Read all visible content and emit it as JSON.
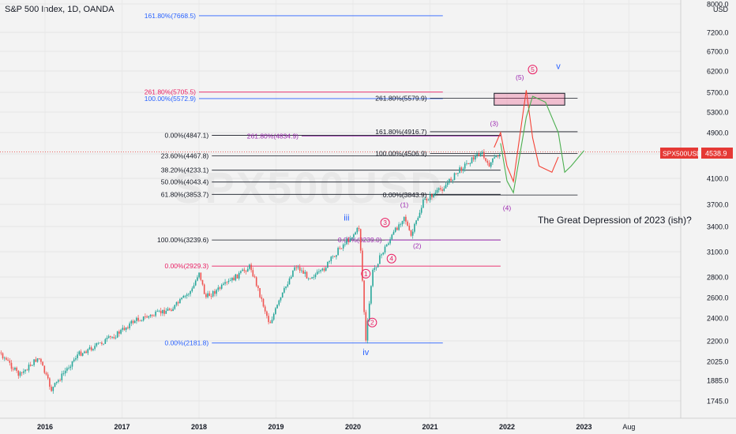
{
  "header": {
    "title": "S&P 500 Index, 1D, OANDA"
  },
  "currency": "USD",
  "watermark": "SPX500USD",
  "price_label": {
    "symbol": "SPX500USD",
    "value": "4538.9"
  },
  "colors": {
    "background": "#f3f3f3",
    "up": "#26a69a",
    "down": "#ef5350",
    "fib_blue": "#2962ff",
    "fib_red": "#e91e63",
    "fib_gray": "#131722",
    "wave_purple": "#9c27b0",
    "current_price": "#e53935"
  },
  "chart_data": {
    "type": "line",
    "title": "",
    "xlabel": "",
    "ylabel": "",
    "ylim": [
      1650,
      8000
    ],
    "y_ticks": [
      "8000.0",
      "7200.0",
      "6700.0",
      "6200.0",
      "5700.0",
      "5300.0",
      "4900.0",
      "4500.0",
      "4100.0",
      "3700.0",
      "3400.0",
      "3100.0",
      "2800.0",
      "2600.0",
      "2400.0",
      "2200.0",
      "2025.0",
      "1885.0",
      "1745.0"
    ],
    "x_ticks": [
      "2016",
      "2017",
      "2018",
      "2019",
      "2020",
      "2021",
      "2022",
      "2023",
      "Aug"
    ],
    "grid": true,
    "series": [
      {
        "x": [
          "2015-01",
          "2015-06",
          "2015-09",
          "2015-12",
          "2016-02",
          "2016-06",
          "2016-09",
          "2016-12",
          "2017-03",
          "2017-06",
          "2017-09",
          "2017-12",
          "2018-01",
          "2018-02",
          "2018-05",
          "2018-09",
          "2018-12",
          "2019-04",
          "2019-06",
          "2019-08",
          "2019-11",
          "2020-01",
          "2020-02",
          "2020-03",
          "2020-04",
          "2020-06",
          "2020-09",
          "2020-10",
          "2020-12",
          "2021-03",
          "2021-06",
          "2021-09",
          "2021-10",
          "2021-12"
        ],
        "y": [
          2050,
          2100,
          1920,
          2060,
          1820,
          2080,
          2160,
          2250,
          2380,
          2430,
          2500,
          2680,
          2870,
          2600,
          2720,
          2930,
          2350,
          2940,
          2800,
          2850,
          3150,
          3300,
          3390,
          2190,
          2850,
          3150,
          3550,
          3270,
          3750,
          3950,
          4280,
          4540,
          4300,
          4538.9
        ]
      }
    ],
    "fib_levels": [
      {
        "label": "161.80%(7668.5)",
        "value": 7668.5,
        "start": "2018-01",
        "end": "2021-03",
        "color": "blue"
      },
      {
        "label": "261.80%(5705.5)",
        "value": 5705.5,
        "start": "2018-01",
        "end": "2021-03",
        "color": "red"
      },
      {
        "label": "100.00%(5572.9)",
        "value": 5572.9,
        "start": "2018-01",
        "end": "2021-03",
        "color": "blue"
      },
      {
        "label": "261.80%(5579.9)",
        "value": 5579.9,
        "start": "2021-01",
        "end": "2022-12",
        "color": "gray"
      },
      {
        "label": "161.80%(4916.7)",
        "value": 4916.7,
        "start": "2021-01",
        "end": "2022-12",
        "color": "gray"
      },
      {
        "label": "0.00%(4847.1)",
        "value": 4847.1,
        "start": "2018-03",
        "end": "2021-12",
        "color": "gray"
      },
      {
        "label": "261.80%(4834.9)",
        "value": 4834.9,
        "start": "2019-05",
        "end": "2021-12",
        "color": "purple"
      },
      {
        "label": "100.00%(4506.9)",
        "value": 4506.9,
        "start": "2021-01",
        "end": "2022-12",
        "color": "gray"
      },
      {
        "label": "23.60%(4467.8)",
        "value": 4467.8,
        "start": "2018-03",
        "end": "2021-12",
        "color": "gray"
      },
      {
        "label": "38.20%(4233.1)",
        "value": 4233.1,
        "start": "2018-03",
        "end": "2021-12",
        "color": "gray"
      },
      {
        "label": "50.00%(4043.4)",
        "value": 4043.4,
        "start": "2018-03",
        "end": "2021-12",
        "color": "gray"
      },
      {
        "label": "61.80%(3853.7)",
        "value": 3853.7,
        "start": "2018-03",
        "end": "2021-12",
        "color": "gray"
      },
      {
        "label": "0.00%(3843.9)",
        "value": 3843.9,
        "start": "2021-01",
        "end": "2022-12",
        "color": "gray"
      },
      {
        "label": "100.00%(3239.6)",
        "value": 3239.6,
        "start": "2018-03",
        "end": "2021-12",
        "color": "gray"
      },
      {
        "label": "0.00%(3239.0)",
        "value": 3239.0,
        "start": "2020-06",
        "end": "2021-12",
        "color": "purple"
      },
      {
        "label": "0.00%(2929.3)",
        "value": 2929.3,
        "start": "2018-03",
        "end": "2021-12",
        "color": "red"
      },
      {
        "label": "0.00%(2181.8)",
        "value": 2181.8,
        "start": "2018-03",
        "end": "2021-03",
        "color": "blue"
      }
    ],
    "target_zone": {
      "low": 5440,
      "high": 5680,
      "start": "2021-11",
      "end": "2022-10"
    },
    "wave_labels": [
      {
        "text": "iii",
        "color": "blue",
        "x": "2019-12",
        "y": 3480
      },
      {
        "text": "iv",
        "color": "blue",
        "x": "2020-03",
        "y": 2080
      },
      {
        "text": "v",
        "color": "blue",
        "x": "2022-09",
        "y": 6250
      },
      {
        "text": "1",
        "color": "red",
        "x": "2020-03",
        "y": 2810
      },
      {
        "text": "2",
        "color": "red",
        "x": "2020-04",
        "y": 2340
      },
      {
        "text": "3",
        "color": "red",
        "x": "2020-06",
        "y": 3420
      },
      {
        "text": "4",
        "color": "red",
        "x": "2020-07",
        "y": 2990
      },
      {
        "text": "5",
        "color": "red",
        "x": "2022-05",
        "y": 6180
      },
      {
        "text": "(1)",
        "color": "purple",
        "x": "2020-09",
        "y": 3660
      },
      {
        "text": "(2)",
        "color": "purple",
        "x": "2020-11",
        "y": 3140
      },
      {
        "text": "(3)",
        "color": "purple",
        "x": "2021-11",
        "y": 5030
      },
      {
        "text": "(4)",
        "color": "purple",
        "x": "2022-01",
        "y": 3620
      },
      {
        "text": "(5)",
        "color": "purple",
        "x": "2022-03",
        "y": 6000
      }
    ],
    "annotation": "The Great Depression of 2023 (ish)?"
  }
}
